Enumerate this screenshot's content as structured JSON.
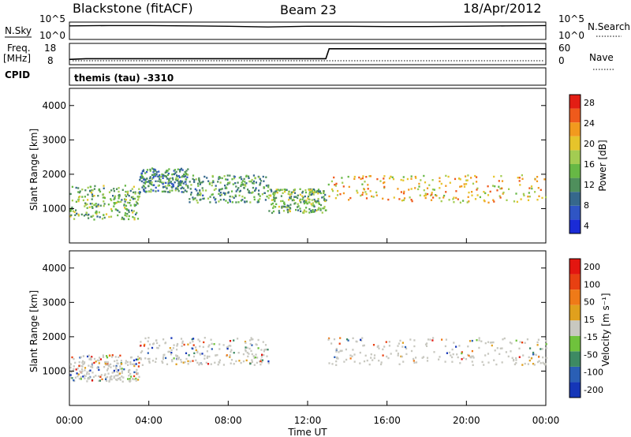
{
  "header": {
    "station": "Blackstone (fitACF)",
    "beam": "Beam 23",
    "date": "18/Apr/2012"
  },
  "top_panels": {
    "nsky_label": "N.Sky",
    "nsearch_label": "N.Search",
    "noise_ticks_left": [
      "10^5",
      "10^0"
    ],
    "noise_ticks_right": [
      "10^5",
      "10^0"
    ],
    "freq_label": "Freq.",
    "freq_unit": "[MHz]",
    "freq_ticks": [
      "18",
      "8"
    ],
    "nave_label": "Nave",
    "nave_ticks": [
      "60",
      "0"
    ],
    "cpid_label": "CPID",
    "cpid_text": "themis (tau) -3310"
  },
  "chart_data": [
    {
      "type": "line",
      "title": "",
      "series": [
        {
          "name": "N.Sky",
          "x": [
            "00:00",
            "02:00",
            "04:00",
            "06:00",
            "08:00",
            "10:00",
            "12:00",
            "14:00",
            "16:00",
            "18:00",
            "20:00",
            "22:00",
            "24:00"
          ],
          "values": [
            3.9,
            4.0,
            4.0,
            3.9,
            3.8,
            3.6,
            3.8,
            3.8,
            3.7,
            3.7,
            3.8,
            3.9,
            4.0
          ]
        }
      ],
      "ylabel": "N.Sky",
      "ylim": [
        0,
        5
      ]
    },
    {
      "type": "line",
      "title": "",
      "series": [
        {
          "name": "Freq.",
          "x": [
            "00:00",
            "00:50",
            "12:55",
            "13:05",
            "24:00"
          ],
          "values": [
            10.5,
            10.8,
            10.8,
            15.5,
            15.5
          ]
        }
      ],
      "ylabel": "Freq. [MHz]",
      "ylim": [
        8,
        18
      ]
    },
    {
      "type": "heatmap",
      "title": "Power",
      "xlabel": "",
      "ylabel": "Slant Range [km]",
      "xlim": [
        0,
        24
      ],
      "ylim": [
        0,
        4500
      ],
      "x_ticks": [
        "00:00",
        "04:00",
        "08:00",
        "12:00",
        "16:00",
        "20:00",
        "00:00"
      ],
      "y_ticks": [
        "1000",
        "2000",
        "3000",
        "4000"
      ],
      "colorbar_label": "Power [dB]",
      "colorbar_ticks": [
        "28",
        "24",
        "20",
        "16",
        "12",
        "8",
        "4"
      ],
      "colorbar_range": [
        0,
        32
      ],
      "colors": [
        "#1a2bd6",
        "#2f55c4",
        "#36688c",
        "#4f8f5c",
        "#67b845",
        "#a3cc52",
        "#e6c42b",
        "#f29a1e",
        "#ef5a1c",
        "#e31e14"
      ],
      "echo_bands": [
        {
          "t0": 0.0,
          "t1": 3.5,
          "r0": 700,
          "r1": 1700,
          "p": 14
        },
        {
          "t0": 3.5,
          "t1": 6.0,
          "r0": 1500,
          "r1": 2200,
          "p": 10
        },
        {
          "t0": 6.0,
          "t1": 10.0,
          "r0": 1200,
          "r1": 2000,
          "p": 12
        },
        {
          "t0": 10.0,
          "t1": 12.9,
          "r0": 900,
          "r1": 1600,
          "p": 14
        },
        {
          "t0": 13.0,
          "t1": 24.0,
          "r0": 1200,
          "r1": 2000,
          "p": 22
        }
      ]
    },
    {
      "type": "heatmap",
      "title": "Velocity",
      "xlabel": "Time UT",
      "ylabel": "Slant Range [km]",
      "xlim": [
        0,
        24
      ],
      "ylim": [
        0,
        4500
      ],
      "x_ticks": [
        "00:00",
        "04:00",
        "08:00",
        "12:00",
        "16:00",
        "20:00",
        "00:00"
      ],
      "y_ticks": [
        "1000",
        "2000",
        "3000",
        "4000"
      ],
      "colorbar_label": "Velocity [m s⁻¹]",
      "colorbar_ticks": [
        "200",
        "100",
        "50",
        "15",
        "-15",
        "-50",
        "-100",
        "-200"
      ],
      "colorbar_range": [
        -250,
        250
      ],
      "colors": [
        "#1536b8",
        "#2a5fb5",
        "#3d8a63",
        "#6fc23c",
        "#c8c8c0",
        "#e0a01d",
        "#ef7a18",
        "#e84012",
        "#e31610"
      ],
      "ground_scatter_color": "#c8c8c0",
      "echo_bands": [
        {
          "t0": 0.0,
          "t1": 3.5,
          "r0": 700,
          "r1": 1500,
          "v": 0
        },
        {
          "t0": 3.5,
          "t1": 10.0,
          "r0": 1200,
          "r1": 2000,
          "v": 0
        },
        {
          "t0": 13.0,
          "t1": 24.0,
          "r0": 1200,
          "r1": 2000,
          "v": 0
        }
      ]
    }
  ]
}
